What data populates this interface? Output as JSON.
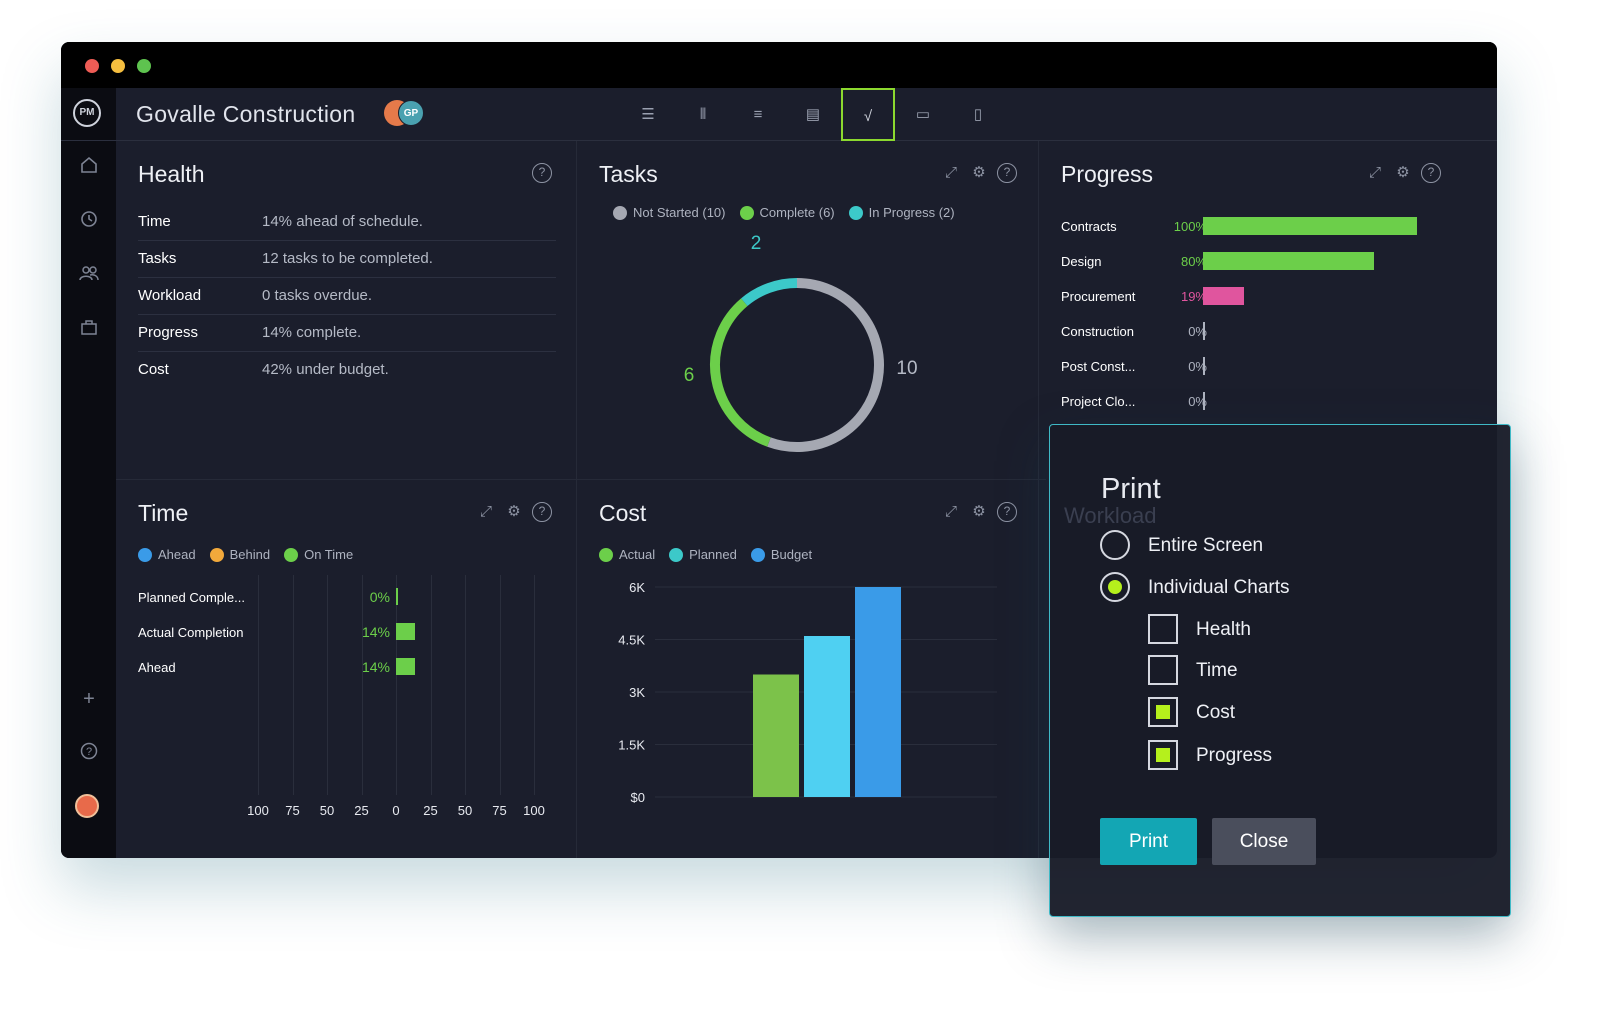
{
  "app": {
    "logo": "PM",
    "project_title": "Govalle Construction",
    "avatars": [
      "GP"
    ]
  },
  "toolbar": {
    "views": [
      "list-icon",
      "board-icon",
      "gantt-icon",
      "sheet-icon",
      "dashboard-icon",
      "calendar-icon",
      "files-icon"
    ],
    "active_view": "dashboard-icon"
  },
  "sidebar": {
    "items": [
      "home-icon",
      "clock-icon",
      "team-icon",
      "briefcase-icon"
    ],
    "bottom": [
      "plus-icon",
      "help-icon",
      "user-avatar"
    ]
  },
  "health": {
    "title": "Health",
    "rows": [
      {
        "label": "Time",
        "value": "14% ahead of schedule."
      },
      {
        "label": "Tasks",
        "value": "12 tasks to be completed."
      },
      {
        "label": "Workload",
        "value": "0 tasks overdue."
      },
      {
        "label": "Progress",
        "value": "14% complete."
      },
      {
        "label": "Cost",
        "value": "42% under budget."
      }
    ]
  },
  "tasks": {
    "title": "Tasks",
    "legend": [
      {
        "label": "Not Started (10)",
        "color": "#a5a8b2"
      },
      {
        "label": "Complete (6)",
        "color": "#6ccf4a"
      },
      {
        "label": "In Progress (2)",
        "color": "#3cc9c9"
      }
    ],
    "labels": {
      "in_progress": "2",
      "complete": "6",
      "not_started": "10"
    }
  },
  "progress": {
    "title": "Progress",
    "rows": [
      {
        "label": "Contracts",
        "pct": "100%",
        "value": 100,
        "color": "#6ccf4a"
      },
      {
        "label": "Design",
        "pct": "80%",
        "value": 80,
        "color": "#6ccf4a"
      },
      {
        "label": "Procurement",
        "pct": "19%",
        "value": 19,
        "color": "#e0559e"
      },
      {
        "label": "Construction",
        "pct": "0%",
        "value": 0,
        "color": "#aeb3c0"
      },
      {
        "label": "Post Const...",
        "pct": "0%",
        "value": 0,
        "color": "#aeb3c0"
      },
      {
        "label": "Project Clo...",
        "pct": "0%",
        "value": 0,
        "color": "#aeb3c0"
      }
    ]
  },
  "time": {
    "title": "Time",
    "legend": [
      {
        "label": "Ahead",
        "color": "#3a9be8"
      },
      {
        "label": "Behind",
        "color": "#f2a93b"
      },
      {
        "label": "On Time",
        "color": "#6ccf4a"
      }
    ],
    "rows": [
      {
        "label": "Planned Comple...",
        "pct": "0%",
        "value": 0
      },
      {
        "label": "Actual Completion",
        "pct": "14%",
        "value": 14
      },
      {
        "label": "Ahead",
        "pct": "14%",
        "value": 14
      }
    ],
    "axis": [
      "100",
      "75",
      "50",
      "25",
      "0",
      "25",
      "50",
      "75",
      "100"
    ]
  },
  "cost": {
    "title": "Cost",
    "legend": [
      {
        "label": "Actual",
        "color": "#6ccf4a"
      },
      {
        "label": "Planned",
        "color": "#3cc9c9"
      },
      {
        "label": "Budget",
        "color": "#3a9be8"
      }
    ]
  },
  "chart_data": [
    {
      "type": "pie",
      "categories": [
        "Not Started",
        "Complete",
        "In Progress"
      ],
      "values": [
        10,
        6,
        2
      ],
      "title": "Tasks"
    },
    {
      "type": "bar",
      "categories": [
        "Contracts",
        "Design",
        "Procurement",
        "Construction",
        "Post Const...",
        "Project Clo..."
      ],
      "values": [
        100,
        80,
        19,
        0,
        0,
        0
      ],
      "title": "Progress",
      "xlim": [
        0,
        100
      ]
    },
    {
      "type": "bar",
      "categories": [
        "Planned Comple...",
        "Actual Completion",
        "Ahead"
      ],
      "values": [
        0,
        14,
        14
      ],
      "title": "Time",
      "xlim": [
        -100,
        100
      ]
    },
    {
      "type": "bar",
      "categories": [
        "Actual",
        "Planned",
        "Budget"
      ],
      "values": [
        3500,
        4600,
        6000
      ],
      "title": "Cost",
      "ylim": [
        0,
        6000
      ],
      "yticks": [
        "$0",
        "1.5K",
        "3K",
        "4.5K",
        "6K"
      ]
    }
  ],
  "dialog": {
    "title": "Print",
    "options": [
      {
        "label": "Entire Screen",
        "selected": false
      },
      {
        "label": "Individual Charts",
        "selected": true
      }
    ],
    "charts": [
      {
        "label": "Health",
        "checked": false
      },
      {
        "label": "Time",
        "checked": false
      },
      {
        "label": "Cost",
        "checked": true
      },
      {
        "label": "Progress",
        "checked": true
      }
    ],
    "print_label": "Print",
    "close_label": "Close",
    "background_panel_title": "Workload"
  },
  "colors": {
    "accent": "#13a6b4",
    "green": "#6ccf4a",
    "lime": "#b5f01c"
  }
}
